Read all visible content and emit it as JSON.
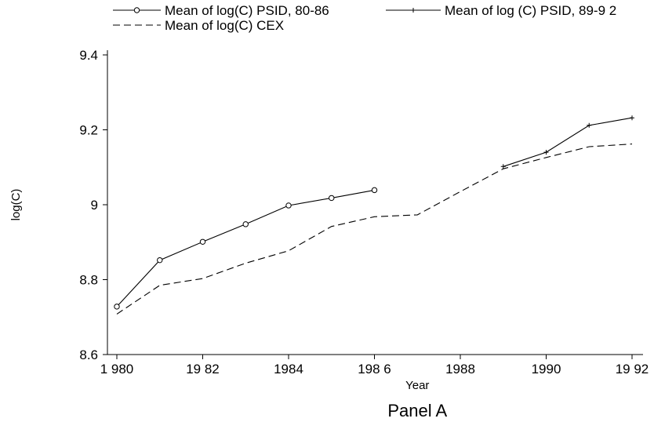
{
  "chart_data": {
    "type": "line",
    "title": "",
    "caption": "Panel A",
    "xlabel": "Year",
    "ylabel": "log(C)",
    "xlim": [
      1980,
      1992
    ],
    "ylim": [
      8.6,
      9.4
    ],
    "x_ticks": [
      1980,
      1982,
      1984,
      1986,
      1988,
      1990,
      1992
    ],
    "x_tick_labels": [
      "1 980",
      "19 82",
      "1984",
      "198 6",
      "1988",
      "1990",
      "19 92"
    ],
    "y_ticks": [
      8.6,
      8.8,
      9,
      9.2,
      9.4
    ],
    "y_tick_labels": [
      "8.6",
      "8.8",
      "9",
      "9.2",
      "9.4"
    ],
    "grid": false,
    "legend_position": "top",
    "series": [
      {
        "name": "Mean of log(C) PSID, 80-86",
        "style": "solid",
        "marker": "circle",
        "color": "#000000",
        "x": [
          1980,
          1981,
          1982,
          1983,
          1984,
          1985,
          1986
        ],
        "y": [
          8.728,
          8.852,
          8.901,
          8.948,
          8.998,
          9.018,
          9.039
        ]
      },
      {
        "name": "Mean of log (C) PSID, 89-9 2",
        "style": "solid",
        "marker": "plus",
        "color": "#000000",
        "x": [
          1989,
          1990,
          1991,
          1992
        ],
        "y": [
          9.102,
          9.14,
          9.212,
          9.232
        ]
      },
      {
        "name": "Mean of log(C) CEX",
        "style": "dashed",
        "marker": "none",
        "color": "#000000",
        "x": [
          1980,
          1981,
          1982,
          1983,
          1984,
          1985,
          1986,
          1987,
          1988,
          1989,
          1990,
          1991,
          1992
        ],
        "y": [
          8.708,
          8.785,
          8.803,
          8.844,
          8.877,
          8.942,
          8.968,
          8.973,
          9.035,
          9.096,
          9.126,
          9.155,
          9.162
        ]
      }
    ]
  }
}
